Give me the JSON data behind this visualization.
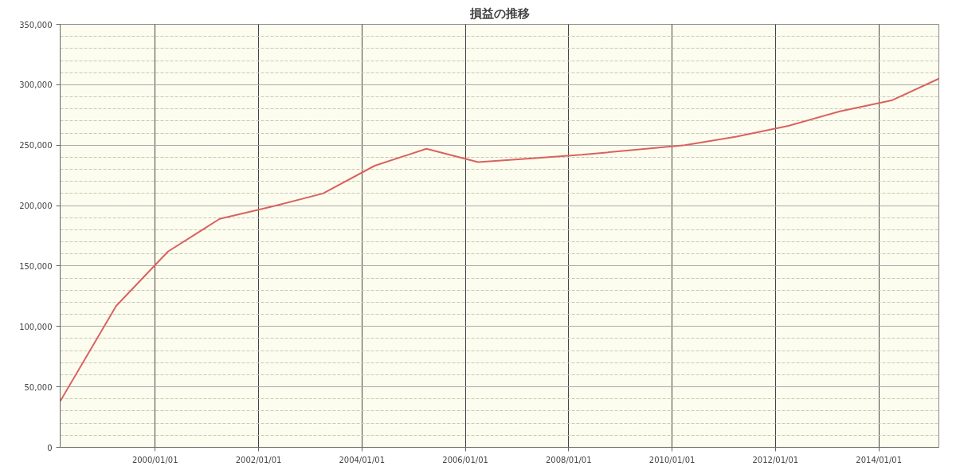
{
  "chart_data": {
    "type": "line",
    "title": "損益の推移",
    "x": [
      "1998-03",
      "1999-04",
      "2000-04",
      "2001-04",
      "2002-04",
      "2003-04",
      "2004-04",
      "2005-04",
      "2006-04",
      "2007-04",
      "2008-04",
      "2009-04",
      "2010-04",
      "2011-04",
      "2012-04",
      "2013-04",
      "2014-04",
      "2015-03"
    ],
    "series": [
      {
        "color": "#d9625f",
        "values": [
          38000,
          117000,
          162000,
          189000,
          199000,
          210000,
          233000,
          247000,
          236000,
          239000,
          242000,
          246000,
          250000,
          257000,
          266000,
          278000,
          287000,
          305000
        ]
      }
    ],
    "xlim": [
      "1998-03",
      "2015-03"
    ],
    "xticks": [
      {
        "value": "2000-01-01",
        "label": "2000/01/01"
      },
      {
        "value": "2002-01-01",
        "label": "2002/01/01"
      },
      {
        "value": "2004-01-01",
        "label": "2004/01/01"
      },
      {
        "value": "2006-01-01",
        "label": "2006/01/01"
      },
      {
        "value": "2008-01-01",
        "label": "2008/01/01"
      },
      {
        "value": "2010-01-01",
        "label": "2010/01/01"
      },
      {
        "value": "2012-01-01",
        "label": "2012/01/01"
      },
      {
        "value": "2014-01-01",
        "label": "2014/01/01"
      }
    ],
    "ylim": [
      0,
      350000
    ],
    "yticks": [
      0,
      {
        "value": 50000,
        "label": "50,000"
      },
      {
        "value": 100000,
        "label": "100,000"
      },
      {
        "value": 150000,
        "label": "150,000"
      },
      {
        "value": 200000,
        "label": "200,000"
      },
      {
        "value": 250000,
        "label": "250,000"
      },
      {
        "value": 300000,
        "label": "300,000"
      },
      {
        "value": 350000,
        "label": "350,000"
      }
    ],
    "grid": true,
    "marker": "none",
    "line_style": "solid"
  }
}
